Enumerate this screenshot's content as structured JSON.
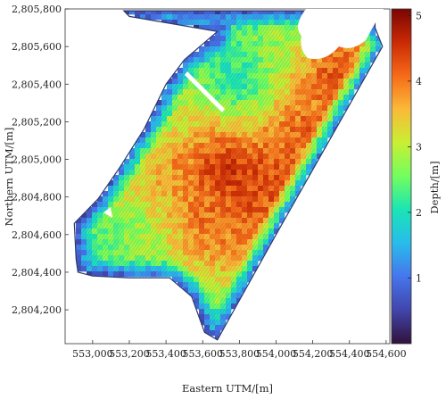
{
  "chart_data": {
    "type": "heatmap",
    "title": "",
    "xlabel": "Eastern UTM/[m]",
    "ylabel": "Northern UTM/[m]",
    "xlim": [
      552850,
      554620
    ],
    "ylim": [
      2804020,
      2805800
    ],
    "x_ticks": [
      "553,000",
      "553,200",
      "553,400",
      "553,600",
      "553,800",
      "554,000",
      "554,200",
      "554,400",
      "554,600"
    ],
    "y_ticks": [
      "2,804,200",
      "2,804,400",
      "2,804,600",
      "2,804,800",
      "2,805,000",
      "2,805,200",
      "2,805,400",
      "2,805,600",
      "2,805,800"
    ],
    "colorbar": {
      "label": "Depth/[m]",
      "min": 0,
      "max": 5.1,
      "ticks": [
        "1",
        "2",
        "3",
        "4",
        "5"
      ],
      "colormap": "turbo"
    },
    "grid": false,
    "legend": "colorbar-right",
    "domain_outline": [
      [
        553170,
        2805790
      ],
      [
        554540,
        2805790
      ],
      [
        554540,
        2805700
      ],
      [
        554580,
        2805600
      ],
      [
        554000,
        2804600
      ],
      [
        553680,
        2804040
      ],
      [
        553610,
        2804080
      ],
      [
        553540,
        2804270
      ],
      [
        553420,
        2804370
      ],
      [
        553200,
        2804370
      ],
      [
        553000,
        2804380
      ],
      [
        552920,
        2804400
      ],
      [
        552910,
        2804470
      ],
      [
        552900,
        2804660
      ],
      [
        553030,
        2804790
      ],
      [
        553150,
        2804960
      ],
      [
        553280,
        2805160
      ],
      [
        553400,
        2805400
      ],
      [
        553500,
        2805530
      ],
      [
        553680,
        2805680
      ],
      [
        553200,
        2805760
      ]
    ],
    "depth_features": [
      {
        "x": 553700,
        "y": 2804970,
        "depth": 4.9
      },
      {
        "x": 553800,
        "y": 2804850,
        "depth": 4.6
      },
      {
        "x": 553950,
        "y": 2804900,
        "depth": 4.4
      },
      {
        "x": 554150,
        "y": 2805150,
        "depth": 4.3
      },
      {
        "x": 554300,
        "y": 2805450,
        "depth": 4.5
      },
      {
        "x": 553600,
        "y": 2804650,
        "depth": 4.2
      },
      {
        "x": 553450,
        "y": 2805000,
        "depth": 3.9
      },
      {
        "x": 553250,
        "y": 2804600,
        "depth": 2.6
      },
      {
        "x": 553000,
        "y": 2804550,
        "depth": 2.0
      },
      {
        "x": 553700,
        "y": 2805600,
        "depth": 1.8
      },
      {
        "x": 553800,
        "y": 2805400,
        "depth": 1.5
      },
      {
        "x": 553350,
        "y": 2805250,
        "depth": 2.4
      },
      {
        "x": 553550,
        "y": 2804150,
        "depth": 2.2
      },
      {
        "x": 553200,
        "y": 2804400,
        "depth": 2.5
      },
      {
        "x": 554000,
        "y": 2805650,
        "depth": 2.7
      }
    ]
  }
}
